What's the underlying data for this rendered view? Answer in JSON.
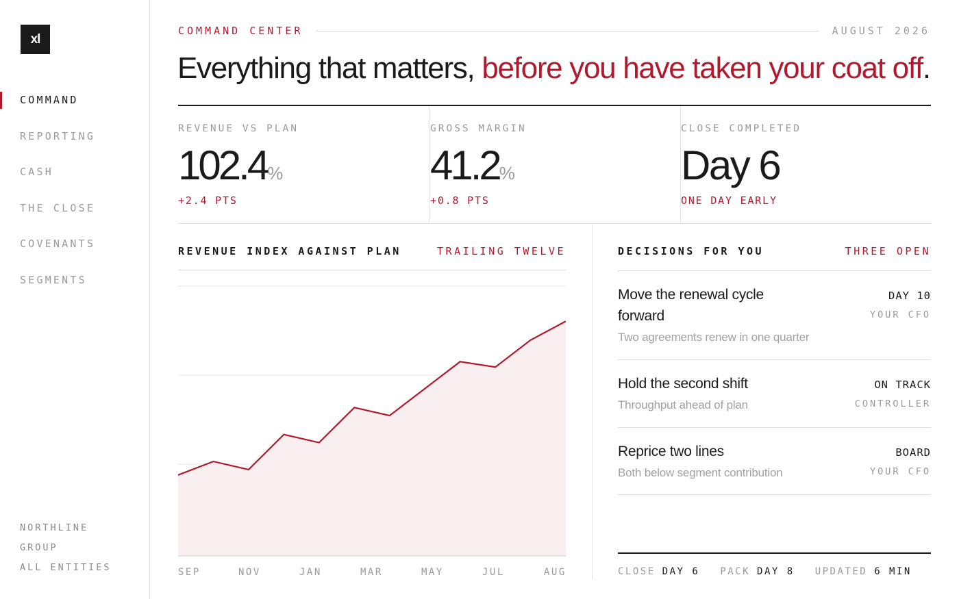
{
  "logo": {
    "text": "xl"
  },
  "nav": {
    "items": [
      {
        "label": "COMMAND",
        "active": true
      },
      {
        "label": "REPORTING",
        "active": false
      },
      {
        "label": "CASH",
        "active": false
      },
      {
        "label": "THE CLOSE",
        "active": false
      },
      {
        "label": "COVENANTS",
        "active": false
      },
      {
        "label": "SEGMENTS",
        "active": false
      }
    ],
    "entity_line1": "NORTHLINE",
    "entity_line2": "GROUP",
    "entity_line3": "ALL ENTITIES"
  },
  "header": {
    "eyebrow": "COMMAND CENTER",
    "date": "AUGUST 2026",
    "headline_plain": "Everything that matters,",
    "headline_accent": "before you have taken your coat off",
    "headline_end": "."
  },
  "kpis": [
    {
      "label": "REVENUE VS PLAN",
      "value": "102.4",
      "unit": "%",
      "delta": "+2.4 PTS"
    },
    {
      "label": "GROSS MARGIN",
      "value": "41.2",
      "unit": "%",
      "delta": "+0.8 PTS"
    },
    {
      "label": "CLOSE COMPLETED",
      "value": "Day 6",
      "unit": "",
      "delta": "ONE DAY EARLY"
    }
  ],
  "chart_panel": {
    "title": "REVENUE INDEX AGAINST PLAN",
    "tag": "TRAILING TWELVE"
  },
  "chart_data": {
    "type": "area",
    "x_tick_labels": [
      "SEP",
      "NOV",
      "JAN",
      "MAR",
      "MAY",
      "JUL",
      "AUG"
    ],
    "values": [
      30,
      35,
      32,
      45,
      42,
      55,
      52,
      62,
      72,
      70,
      80,
      87
    ],
    "ylim": [
      0,
      100
    ],
    "grid": true,
    "color": "#b0192e",
    "fill_color": "#f9eef0"
  },
  "decisions": {
    "title": "DECISIONS FOR YOU",
    "tag": "THREE OPEN",
    "items": [
      {
        "title": "Move the renewal cycle forward",
        "subtitle": "Two agreements renew in one quarter",
        "status": "DAY 10",
        "owner": "YOUR CFO"
      },
      {
        "title": "Hold the second shift",
        "subtitle": "Throughput ahead of plan",
        "status": "ON TRACK",
        "owner": "CONTROLLER"
      },
      {
        "title": "Reprice two lines",
        "subtitle": "Both below segment contribution",
        "status": "BOARD",
        "owner": "YOUR CFO"
      }
    ],
    "footer": [
      {
        "label": "CLOSE",
        "value": "DAY 6"
      },
      {
        "label": "PACK",
        "value": "DAY 8"
      },
      {
        "label": "UPDATED",
        "value": "6 MIN"
      }
    ]
  },
  "colors": {
    "accent": "#b0192e",
    "text": "#1a1a1a",
    "muted": "#9a9a9a"
  }
}
